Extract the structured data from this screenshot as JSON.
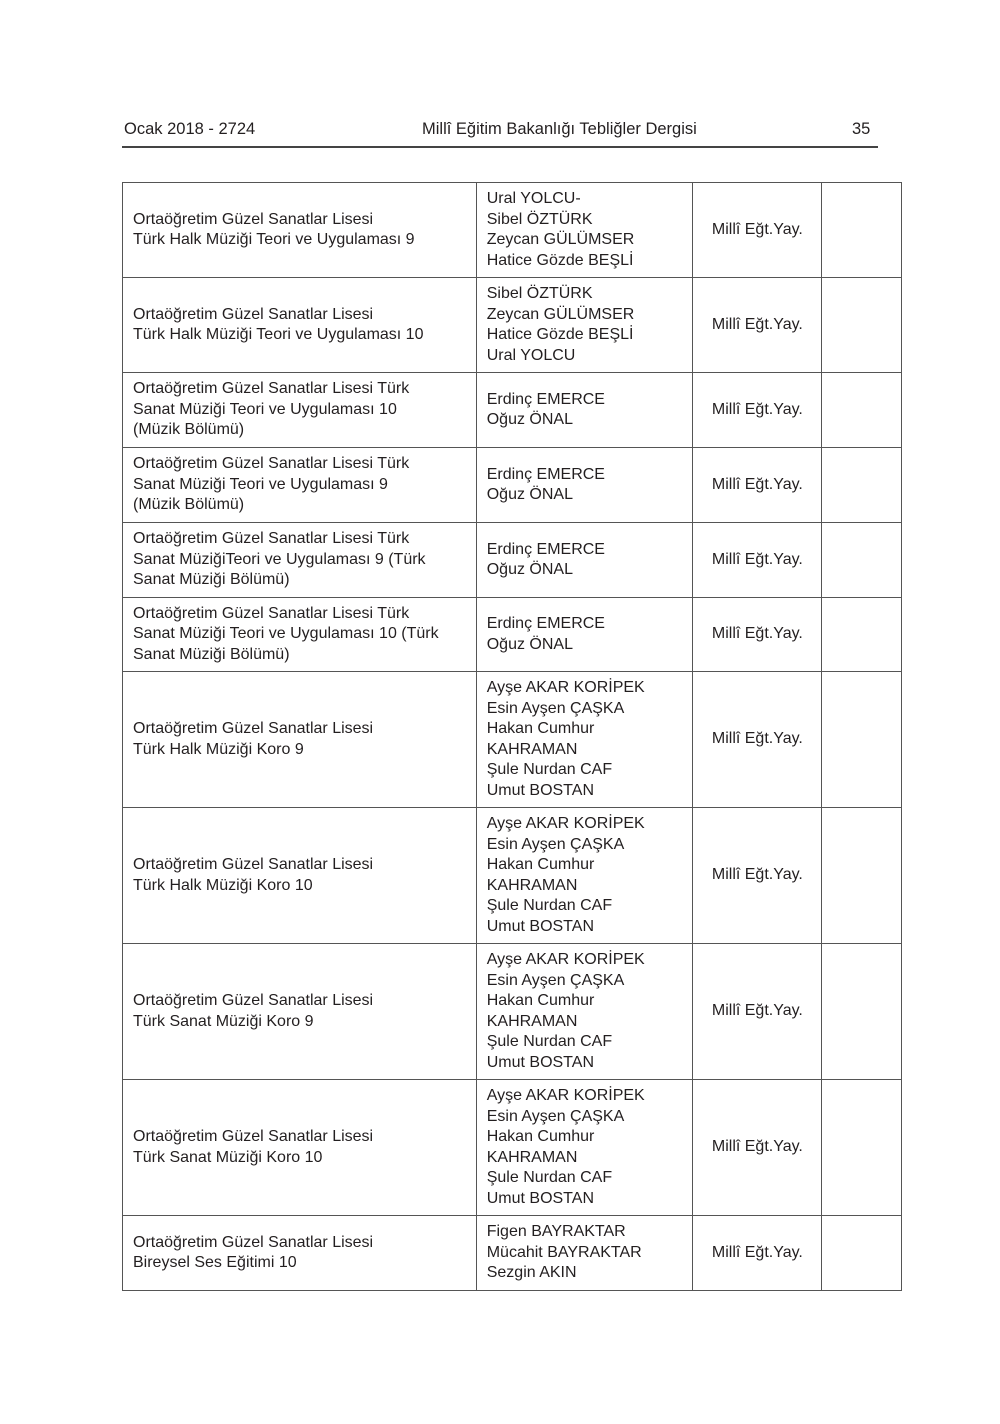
{
  "header": {
    "left": "Ocak 2018 - 2724",
    "center": "Millî Eğitim Bakanlığı Tebliğler Dergisi",
    "page": "35"
  },
  "rows": [
    {
      "title": [
        "Ortaöğretim Güzel Sanatlar Lisesi",
        "Türk Halk Müziği Teori ve Uygulaması 9"
      ],
      "authors": [
        "Ural YOLCU-",
        "Sibel ÖZTÜRK",
        "Zeycan GÜLÜMSER",
        "Hatice Gözde BEŞLİ"
      ],
      "publisher": "Millî Eğt.Yay.",
      "extra": ""
    },
    {
      "title": [
        "Ortaöğretim Güzel Sanatlar Lisesi",
        "Türk Halk Müziği Teori ve Uygulaması 10"
      ],
      "authors": [
        "Sibel ÖZTÜRK",
        "Zeycan GÜLÜMSER",
        "Hatice Gözde BEŞLİ",
        "Ural YOLCU"
      ],
      "publisher": "Millî Eğt.Yay.",
      "extra": ""
    },
    {
      "title": [
        "Ortaöğretim Güzel Sanatlar Lisesi Türk",
        "Sanat Müziği Teori ve Uygulaması 10",
        "(Müzik Bölümü)"
      ],
      "authors": [
        "Erdinç EMERCE",
        "Oğuz ÖNAL"
      ],
      "publisher": "Millî Eğt.Yay.",
      "extra": ""
    },
    {
      "title": [
        "Ortaöğretim Güzel Sanatlar Lisesi Türk",
        "Sanat Müziği Teori ve Uygulaması 9",
        "(Müzik Bölümü)"
      ],
      "authors": [
        "Erdinç EMERCE",
        "Oğuz ÖNAL"
      ],
      "publisher": "Millî Eğt.Yay.",
      "extra": ""
    },
    {
      "title": [
        "Ortaöğretim Güzel Sanatlar Lisesi Türk",
        "Sanat MüziğiTeori ve Uygulaması 9 (Türk",
        "Sanat Müziği  Bölümü)"
      ],
      "authors": [
        "Erdinç EMERCE",
        "Oğuz ÖNAL"
      ],
      "publisher": "Millî Eğt.Yay.",
      "extra": ""
    },
    {
      "title": [
        "Ortaöğretim Güzel Sanatlar Lisesi Türk",
        "Sanat Müziği Teori ve Uygulaması 10 (Türk",
        "Sanat Müziği  Bölümü)"
      ],
      "authors": [
        "Erdinç EMERCE",
        "Oğuz ÖNAL"
      ],
      "publisher": "Millî Eğt.Yay.",
      "extra": ""
    },
    {
      "title": [
        "Ortaöğretim Güzel Sanatlar Lisesi",
        "Türk Halk Müziği Koro 9"
      ],
      "authors": [
        "Ayşe AKAR KORİPEK",
        "Esin Ayşen ÇAŞKA",
        "Hakan Cumhur",
        "KAHRAMAN",
        "Şule Nurdan CAF",
        "Umut BOSTAN"
      ],
      "publisher": "Millî Eğt.Yay.",
      "extra": ""
    },
    {
      "title": [
        "Ortaöğretim Güzel Sanatlar Lisesi",
        "Türk Halk Müziği Koro 10"
      ],
      "authors": [
        "Ayşe AKAR KORİPEK",
        "Esin Ayşen ÇAŞKA",
        "Hakan Cumhur",
        "KAHRAMAN",
        "Şule Nurdan CAF",
        "Umut BOSTAN"
      ],
      "publisher": "Millî Eğt.Yay.",
      "extra": ""
    },
    {
      "title": [
        "Ortaöğretim Güzel Sanatlar Lisesi",
        "Türk Sanat Müziği Koro 9"
      ],
      "authors": [
        "Ayşe AKAR KORİPEK",
        "Esin Ayşen ÇAŞKA",
        "Hakan Cumhur",
        "KAHRAMAN",
        "Şule Nurdan CAF",
        "Umut BOSTAN"
      ],
      "publisher": "Millî Eğt.Yay.",
      "extra": ""
    },
    {
      "title": [
        "Ortaöğretim Güzel Sanatlar Lisesi",
        "Türk Sanat Müziği Koro 10"
      ],
      "authors": [
        "Ayşe AKAR KORİPEK",
        "Esin Ayşen ÇAŞKA",
        "Hakan Cumhur",
        "KAHRAMAN",
        "Şule Nurdan CAF",
        "Umut BOSTAN"
      ],
      "publisher": "Millî Eğt.Yay.",
      "extra": ""
    },
    {
      "title": [
        "Ortaöğretim Güzel Sanatlar Lisesi",
        "Bireysel Ses Eğitimi 10"
      ],
      "authors": [
        "Figen BAYRAKTAR",
        "Mücahit BAYRAKTAR",
        "Sezgin AKIN"
      ],
      "publisher": "Millî Eğt.Yay.",
      "extra": ""
    }
  ]
}
